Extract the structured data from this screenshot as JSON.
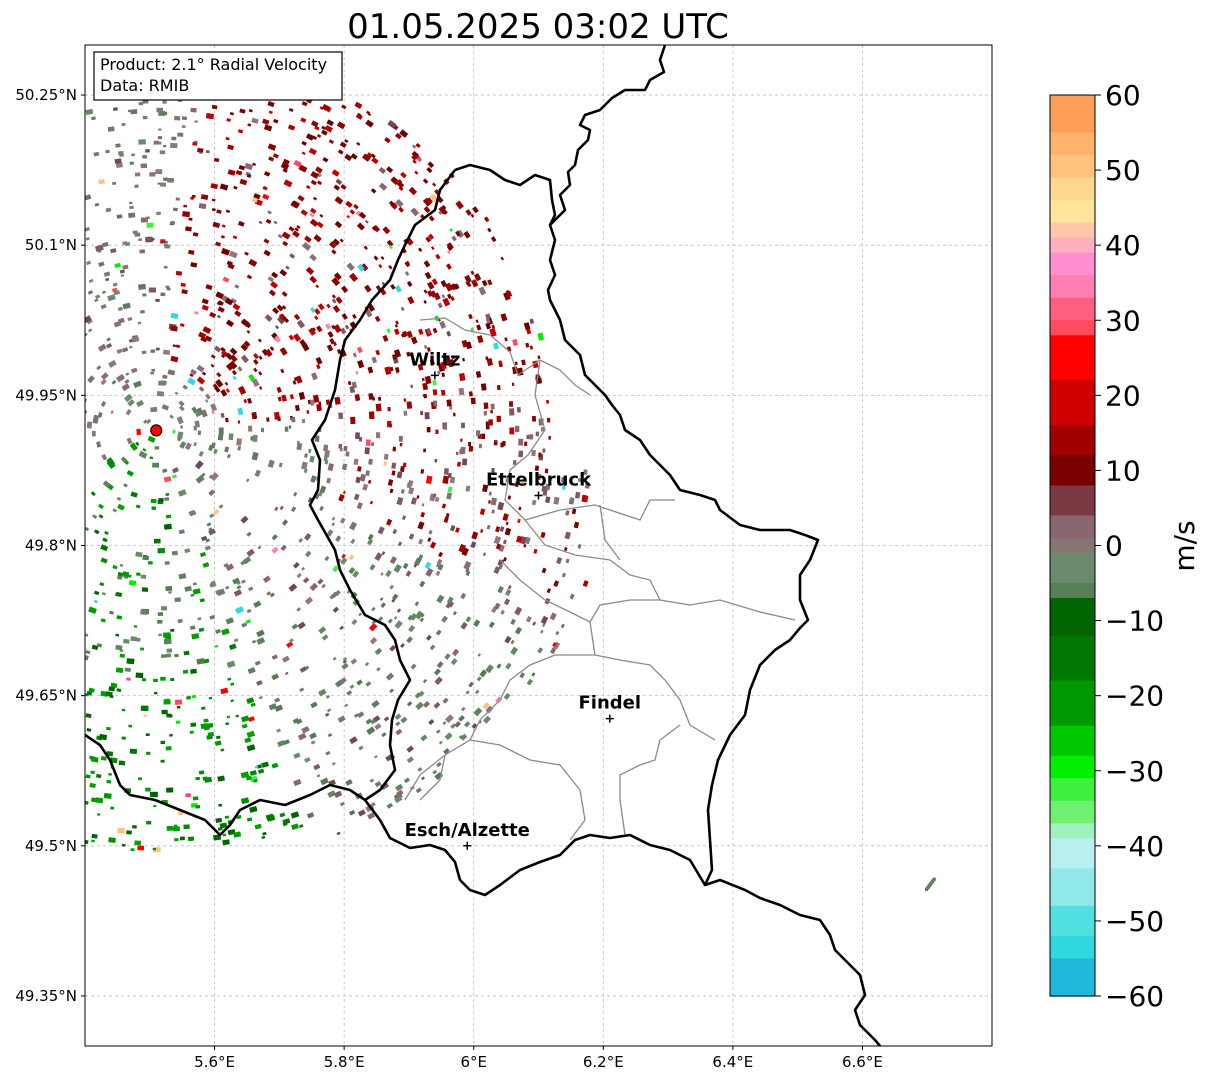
{
  "title": "01.05.2025 03:02 UTC",
  "info_box": {
    "product": "Product: 2.1° Radial Velocity",
    "data": "Data: RMIB"
  },
  "map": {
    "lon_range": [
      5.4,
      6.8
    ],
    "lat_range": [
      49.3,
      50.3
    ],
    "grid": true,
    "x_ticks": [
      {
        "value": 5.6,
        "label": "5.6°E"
      },
      {
        "value": 5.8,
        "label": "5.8°E"
      },
      {
        "value": 6.0,
        "label": "6°E"
      },
      {
        "value": 6.2,
        "label": "6.2°E"
      },
      {
        "value": 6.4,
        "label": "6.4°E"
      },
      {
        "value": 6.6,
        "label": "6.6°E"
      }
    ],
    "y_ticks": [
      {
        "value": 50.25,
        "label": "50.25°N"
      },
      {
        "value": 50.1,
        "label": "50.1°N"
      },
      {
        "value": 49.95,
        "label": "49.95°N"
      },
      {
        "value": 49.8,
        "label": "49.8°N"
      },
      {
        "value": 49.65,
        "label": "49.65°N"
      },
      {
        "value": 49.5,
        "label": "49.5°N"
      },
      {
        "value": 49.35,
        "label": "49.35°N"
      }
    ],
    "radar_site": {
      "lon": 5.51,
      "lat": 49.915,
      "color": "#ff0000"
    },
    "cities": [
      {
        "name": "Wiltz",
        "lon": 5.94,
        "lat": 49.97
      },
      {
        "name": "Ettelbruck",
        "lon": 6.1,
        "lat": 49.85
      },
      {
        "name": "Findel",
        "lon": 6.21,
        "lat": 49.627
      },
      {
        "name": "Esch/Alzette",
        "lon": 5.99,
        "lat": 49.5
      }
    ]
  },
  "colorbar": {
    "label": "m/s",
    "min": -60,
    "max": 60,
    "ticks": [
      {
        "value": 60,
        "label": "60"
      },
      {
        "value": 50,
        "label": "50"
      },
      {
        "value": 40,
        "label": "40"
      },
      {
        "value": 30,
        "label": "30"
      },
      {
        "value": 20,
        "label": "20"
      },
      {
        "value": 10,
        "label": "10"
      },
      {
        "value": 0,
        "label": "0"
      },
      {
        "value": -10,
        "label": "−10"
      },
      {
        "value": -20,
        "label": "−20"
      },
      {
        "value": -30,
        "label": "−30"
      },
      {
        "value": -40,
        "label": "−40"
      },
      {
        "value": -50,
        "label": "−50"
      },
      {
        "value": -60,
        "label": "−60"
      }
    ],
    "stops": [
      {
        "value": 60,
        "color": "#ff9e57"
      },
      {
        "value": 55,
        "color": "#ffb26b"
      },
      {
        "value": 52,
        "color": "#ffc27f"
      },
      {
        "value": 49,
        "color": "#ffd790"
      },
      {
        "value": 46,
        "color": "#ffe49a"
      },
      {
        "value": 43,
        "color": "#ffc8a8"
      },
      {
        "value": 41,
        "color": "#ffb0c0"
      },
      {
        "value": 39,
        "color": "#ff8fd0"
      },
      {
        "value": 36,
        "color": "#ff80b0"
      },
      {
        "value": 33,
        "color": "#ff6080"
      },
      {
        "value": 30,
        "color": "#ff4a60"
      },
      {
        "value": 28,
        "color": "#ff0000"
      },
      {
        "value": 22,
        "color": "#d00000"
      },
      {
        "value": 16,
        "color": "#a00000"
      },
      {
        "value": 12,
        "color": "#7a0000"
      },
      {
        "value": 8,
        "color": "#7a3a44"
      },
      {
        "value": 4,
        "color": "#8a6670"
      },
      {
        "value": 1,
        "color": "#857575"
      },
      {
        "value": -1,
        "color": "#6b8a6b"
      },
      {
        "value": -5,
        "color": "#558055"
      },
      {
        "value": -7,
        "color": "#006400"
      },
      {
        "value": -12,
        "color": "#007800"
      },
      {
        "value": -18,
        "color": "#009800"
      },
      {
        "value": -24,
        "color": "#00c800"
      },
      {
        "value": -28,
        "color": "#00ee00"
      },
      {
        "value": -31,
        "color": "#40f040"
      },
      {
        "value": -34,
        "color": "#70f070"
      },
      {
        "value": -37,
        "color": "#a0f0c0"
      },
      {
        "value": -39,
        "color": "#b8f0f0"
      },
      {
        "value": -43,
        "color": "#90e8e8"
      },
      {
        "value": -48,
        "color": "#50e0e0"
      },
      {
        "value": -52,
        "color": "#30d8e0"
      },
      {
        "value": -55,
        "color": "#20b8d8"
      },
      {
        "value": -60,
        "color": "#2080c8"
      }
    ]
  }
}
